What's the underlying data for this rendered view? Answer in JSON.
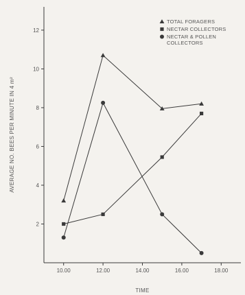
{
  "chart_data": {
    "type": "line",
    "title": "",
    "xlabel": "TIME",
    "ylabel": "AVERAGE NO. BEES PER MINUTE IN 4 m²",
    "x_ticks": [
      "10.00",
      "12.00",
      "14.00",
      "16.00",
      "18.00"
    ],
    "x_tick_values": [
      10,
      12,
      14,
      16,
      18
    ],
    "y_ticks": [
      2,
      4,
      6,
      8,
      10,
      12
    ],
    "xlim": [
      9,
      19
    ],
    "ylim": [
      0,
      13.2
    ],
    "grid": false,
    "legend_placement": "top-right",
    "series": [
      {
        "name": "TOTAL FORAGERS",
        "marker": "triangle",
        "x": [
          10,
          12,
          15,
          17
        ],
        "y": [
          3.2,
          10.7,
          7.95,
          8.2
        ]
      },
      {
        "name": "NECTAR COLLECTORS",
        "marker": "square",
        "x": [
          10,
          12,
          15,
          17
        ],
        "y": [
          2.0,
          2.5,
          5.45,
          7.7
        ]
      },
      {
        "name": "NECTAR & POLLEN COLLECTORS",
        "marker": "circle",
        "x": [
          10,
          12,
          15,
          17
        ],
        "y": [
          1.3,
          8.25,
          2.5,
          0.5
        ]
      }
    ],
    "colors": {
      "ink": "#3a3a3a",
      "background": "#f4f2ee"
    }
  }
}
